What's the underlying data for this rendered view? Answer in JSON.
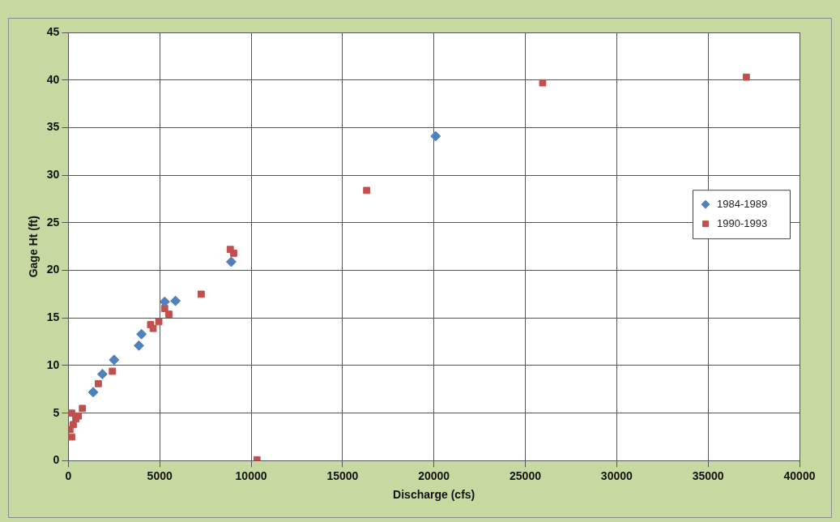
{
  "chart_data": {
    "type": "scatter",
    "xlabel": "Discharge (cfs)",
    "ylabel": "Gage Ht (ft)",
    "xlim": [
      0,
      40000
    ],
    "xticks": [
      0,
      5000,
      10000,
      15000,
      20000,
      25000,
      30000,
      35000,
      40000
    ],
    "ylim": [
      0,
      45
    ],
    "yticks": [
      0,
      5,
      10,
      15,
      20,
      25,
      30,
      35,
      40,
      45
    ],
    "grid": true,
    "legend": "right",
    "series": [
      {
        "name": "1984-1989",
        "color": "#4f81bd",
        "marker": "diamond",
        "x": [
          1360,
          1860,
          2500,
          3860,
          4000,
          5270,
          5860,
          8910,
          20090
        ],
        "values": [
          7.2,
          9.1,
          10.6,
          12.1,
          13.3,
          16.7,
          16.8,
          20.9,
          34.1
        ]
      },
      {
        "name": "1990-1993",
        "color": "#c0504d",
        "marker": "square",
        "x": [
          90,
          180,
          180,
          270,
          410,
          545,
          770,
          1640,
          2410,
          4500,
          4640,
          4950,
          5270,
          5500,
          7270,
          8860,
          9045,
          10320,
          16320,
          25950,
          37090
        ],
        "values": [
          3.3,
          2.5,
          5.0,
          3.8,
          4.4,
          4.7,
          5.5,
          8.1,
          9.4,
          14.3,
          13.9,
          14.6,
          16.0,
          15.4,
          17.5,
          22.2,
          21.8,
          0.1,
          28.4,
          39.7,
          40.3
        ]
      }
    ]
  }
}
